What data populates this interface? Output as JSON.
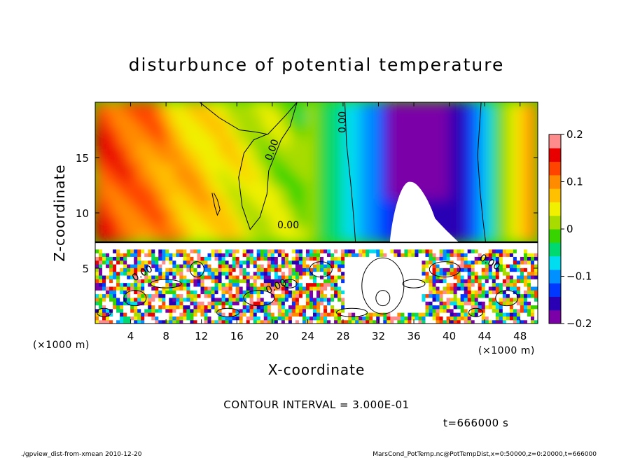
{
  "chart_data": {
    "type": "heatmap",
    "title": "disturbunce of potential temperature",
    "xlabel": "X-coordinate",
    "ylabel": "Z-coordinate",
    "x_unit_left": "(×1000 m)",
    "x_unit_right": "(×1000 m)",
    "xlim": [
      0,
      50
    ],
    "ylim": [
      0,
      20
    ],
    "xticks": [
      4,
      8,
      12,
      16,
      20,
      24,
      28,
      32,
      36,
      40,
      44,
      48
    ],
    "yticks": [
      5,
      10,
      15
    ],
    "colorbar": {
      "range": [
        -0.2,
        0.2
      ],
      "tick_values": [
        0.2,
        0.1,
        0,
        -0.1,
        -0.2
      ],
      "tick_labels": [
        "0.2",
        "0.1",
        "0",
        "−0.1",
        "−0.2"
      ],
      "colors": [
        "#7b00a8",
        "#2a00b4",
        "#0038ff",
        "#0090ff",
        "#00ddf0",
        "#00d870",
        "#38d400",
        "#a8dc00",
        "#f0f000",
        "#ffc000",
        "#ff8c00",
        "#ff4400",
        "#e80000",
        "#ff8c8c"
      ]
    },
    "contour_labels": [
      "0.00",
      "0.00",
      "0.00",
      "0.00",
      "0.00",
      "0.00"
    ],
    "contour_interval_text": "CONTOUR INTERVAL = 3.000E-01",
    "time_text": "t=666000 s",
    "footer_left": "./gpview_dist-from-xmean  2010-12-20",
    "footer_right": "MarsCond_PotTemp.nc@PotTempDist,x=0:50000,z=0:20000,t=666000"
  }
}
